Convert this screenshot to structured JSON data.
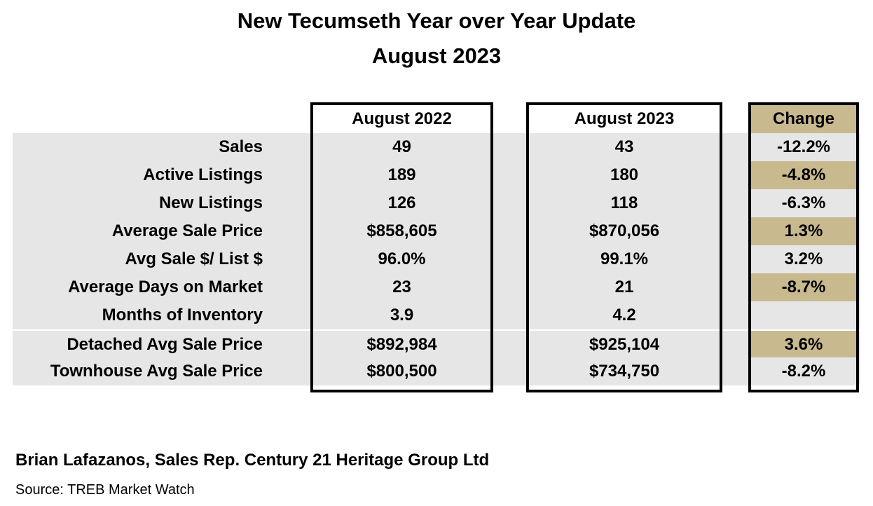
{
  "title_line1": "New Tecumseth Year over Year Update",
  "title_line2": "August 2023",
  "columns": {
    "col1": "August 2022",
    "col2": "August 2023",
    "change": "Change"
  },
  "rows": [
    {
      "label": "Sales",
      "v2022": "49",
      "v2023": "43",
      "change": "-12.2%",
      "change_highlight": false
    },
    {
      "label": "Active Listings",
      "v2022": "189",
      "v2023": "180",
      "change": "-4.8%",
      "change_highlight": true
    },
    {
      "label": "New Listings",
      "v2022": "126",
      "v2023": "118",
      "change": "-6.3%",
      "change_highlight": false
    },
    {
      "label": "Average Sale Price",
      "v2022": "$858,605",
      "v2023": "$870,056",
      "change": "1.3%",
      "change_highlight": true
    },
    {
      "label": "Avg Sale $/ List $",
      "v2022": "96.0%",
      "v2023": "99.1%",
      "change": "3.2%",
      "change_highlight": false
    },
    {
      "label": "Average Days on Market",
      "v2022": "23",
      "v2023": "21",
      "change": "-8.7%",
      "change_highlight": true
    },
    {
      "label": "Months of Inventory",
      "v2022": "3.9",
      "v2023": "4.2",
      "change": "",
      "change_highlight": false
    },
    {
      "label": "Detached Avg Sale Price",
      "v2022": "$892,984",
      "v2023": "$925,104",
      "change": "3.6%",
      "change_highlight": true
    },
    {
      "label": "Townhouse Avg Sale Price",
      "v2022": "$800,500",
      "v2023": "$734,750",
      "change": "-8.2%",
      "change_highlight": false
    }
  ],
  "footer": {
    "name": "Brian Lafazanos, Sales Rep. Century 21 Heritage Group Ltd",
    "source": "Source: TREB Market Watch"
  },
  "colors": {
    "row_shade": "#e6e6e6",
    "change_highlight": "#c8b98f"
  }
}
